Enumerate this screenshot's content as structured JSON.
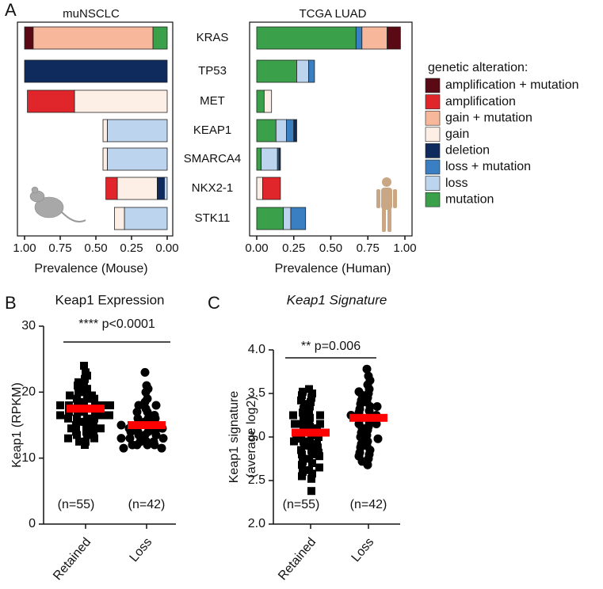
{
  "panel_labels": [
    "A",
    "B",
    "C"
  ],
  "chart_data": [
    {
      "type": "stacked-barh",
      "title": "muNSCLC",
      "xlabel": "Prevalence (Mouse)",
      "categories": [
        "KRAS",
        "TP53",
        "MET",
        "KEAP1",
        "SMARCA4",
        "NKX2-1",
        "STK11"
      ],
      "xlim": [
        1,
        0
      ],
      "xticks": [
        {
          "value": 1,
          "label": "1.00"
        },
        {
          "value": 0.75,
          "label": "0.75"
        },
        {
          "value": 0.5,
          "label": "0.50"
        },
        {
          "value": 0.25,
          "label": "0.25"
        },
        {
          "value": 0,
          "label": "0.00"
        }
      ],
      "series": [
        {
          "name": "amplification + mutation",
          "color": "#5a0a14",
          "values": [
            0.06,
            0,
            0,
            0,
            0,
            0,
            0
          ]
        },
        {
          "name": "amplification",
          "color": "#e0262b",
          "values": [
            0,
            0,
            0.33,
            0,
            0,
            0.08,
            0
          ]
        },
        {
          "name": "gain + mutation",
          "color": "#f7b79b",
          "values": [
            0.84,
            0,
            0,
            0,
            0,
            0,
            0
          ]
        },
        {
          "name": "gain",
          "color": "#fdefe5",
          "values": [
            0,
            0,
            0.65,
            0.03,
            0.03,
            0.28,
            0.07
          ]
        },
        {
          "name": "deletion",
          "color": "#0f2a5c",
          "values": [
            0,
            1,
            0,
            0,
            0,
            0.05,
            0
          ]
        },
        {
          "name": "loss + mutation",
          "color": "#3a7fc1",
          "values": [
            0,
            0,
            0,
            0,
            0,
            0,
            0
          ]
        },
        {
          "name": "loss",
          "color": "#bdd4ee",
          "values": [
            0,
            0,
            0,
            0.42,
            0.42,
            0.02,
            0.3
          ]
        },
        {
          "name": "mutation",
          "color": "#3aa04a",
          "values": [
            0.1,
            0,
            0,
            0,
            0,
            0,
            0
          ]
        }
      ]
    },
    {
      "type": "stacked-barh",
      "title": "TCGA LUAD",
      "xlabel": "Prevalence (Human)",
      "categories": [
        "KRAS",
        "TP53",
        "MET",
        "KEAP1",
        "SMARCA4",
        "NKX2-1",
        "STK11"
      ],
      "xlim": [
        0,
        1
      ],
      "xticks": [
        {
          "value": 0,
          "label": "0.00"
        },
        {
          "value": 0.25,
          "label": "0.25"
        },
        {
          "value": 0.5,
          "label": "0.50"
        },
        {
          "value": 0.75,
          "label": "0.75"
        },
        {
          "value": 1,
          "label": "1.00"
        }
      ],
      "legend": "right",
      "legend_title": "genetic alteration:",
      "series": [
        {
          "name": "amplification + mutation",
          "color": "#5a0a14",
          "values": [
            0.09,
            0,
            0,
            0,
            0,
            0,
            0
          ]
        },
        {
          "name": "amplification",
          "color": "#e0262b",
          "values": [
            0,
            0,
            0,
            0,
            0,
            0.12,
            0
          ]
        },
        {
          "name": "gain + mutation",
          "color": "#f7b79b",
          "values": [
            0.17,
            0,
            0,
            0,
            0,
            0,
            0
          ]
        },
        {
          "name": "gain",
          "color": "#fdefe5",
          "values": [
            0,
            0,
            0.05,
            0,
            0,
            0.04,
            0
          ]
        },
        {
          "name": "deletion",
          "color": "#0f2a5c",
          "values": [
            0,
            0,
            0,
            0.02,
            0.01,
            0,
            0
          ]
        },
        {
          "name": "loss + mutation",
          "color": "#3a7fc1",
          "values": [
            0.04,
            0.04,
            0,
            0.05,
            0.01,
            0,
            0.1
          ]
        },
        {
          "name": "loss",
          "color": "#bdd4ee",
          "values": [
            0,
            0.08,
            0,
            0.07,
            0.11,
            0,
            0.05
          ]
        },
        {
          "name": "mutation",
          "color": "#3aa04a",
          "values": [
            0.67,
            0.27,
            0.05,
            0.13,
            0.03,
            0,
            0.18
          ]
        }
      ]
    },
    {
      "type": "dot",
      "title": "Keap1 Expression",
      "ylabel": [
        "Keap1 (RPKM)"
      ],
      "annotation": "**** p<0.0001",
      "categories": [
        "Retained",
        "Loss"
      ],
      "ylim": [
        0,
        30
      ],
      "yticks": [
        0,
        10,
        20,
        30
      ],
      "mean_color": "#ff0000",
      "groups": [
        {
          "marker": "square",
          "n_label": "(n=55)",
          "mean": 17.5,
          "values": [
            24,
            23,
            22.5,
            22,
            21.5,
            21,
            21,
            20.5,
            20,
            20,
            19.5,
            19.5,
            19,
            19,
            19,
            18.5,
            18.5,
            18,
            18,
            18,
            18,
            17.5,
            17.5,
            17.5,
            17.5,
            17,
            17,
            17,
            17,
            16.5,
            16.5,
            16.5,
            16,
            16,
            16,
            16,
            15.5,
            15.5,
            15.5,
            15,
            15,
            15,
            14.5,
            14.5,
            14,
            14,
            14,
            13.5,
            13.5,
            13,
            13,
            12.5,
            12.5,
            12,
            18
          ]
        },
        {
          "marker": "circle",
          "n_label": "(n=42)",
          "mean": 15,
          "values": [
            23,
            21,
            20.5,
            20,
            19,
            18.5,
            18,
            18,
            17.5,
            17,
            17,
            16.5,
            16,
            16,
            16,
            15.5,
            15.5,
            15,
            15,
            15,
            14.5,
            14.5,
            14,
            14,
            14,
            13.5,
            13.5,
            13.5,
            13,
            13,
            13,
            12.5,
            12.5,
            12.5,
            12,
            12,
            12,
            12,
            11.5,
            11.5,
            15,
            14
          ]
        }
      ]
    },
    {
      "type": "dot",
      "title": "Keap1 Signature",
      "ylabel": [
        "Keap1 signature",
        "(average log2)"
      ],
      "annotation": "** p=0.006",
      "categories": [
        "Retained",
        "Loss"
      ],
      "ylim": [
        2,
        4
      ],
      "yticks": [
        {
          "value": 2,
          "label": "2.0"
        },
        2.5,
        {
          "value": 3,
          "label": "3.0"
        },
        3.5,
        {
          "value": 4,
          "label": "4.0"
        }
      ],
      "mean_color": "#ff0000",
      "groups": [
        {
          "marker": "square",
          "n_label": "(n=55)",
          "mean": 3.05,
          "values": [
            3.55,
            3.52,
            3.5,
            3.48,
            3.45,
            3.42,
            3.4,
            3.38,
            3.35,
            3.32,
            3.3,
            3.28,
            3.25,
            3.22,
            3.2,
            3.18,
            3.15,
            3.15,
            3.12,
            3.1,
            3.1,
            3.08,
            3.05,
            3.05,
            3.02,
            3.0,
            3.0,
            2.98,
            2.95,
            2.95,
            2.92,
            2.9,
            2.9,
            2.88,
            2.85,
            2.85,
            2.82,
            2.8,
            2.8,
            2.78,
            2.75,
            2.72,
            2.7,
            2.68,
            2.65,
            2.62,
            2.6,
            2.58,
            2.55,
            2.52,
            3.25,
            3.15,
            3.05,
            2.95,
            2.38
          ]
        },
        {
          "marker": "circle",
          "n_label": "(n=42)",
          "mean": 3.22,
          "values": [
            3.78,
            3.7,
            3.65,
            3.6,
            3.55,
            3.52,
            3.5,
            3.48,
            3.45,
            3.42,
            3.4,
            3.38,
            3.35,
            3.32,
            3.3,
            3.28,
            3.25,
            3.22,
            3.2,
            3.18,
            3.15,
            3.12,
            3.1,
            3.08,
            3.05,
            3.02,
            3.0,
            2.98,
            2.95,
            2.92,
            2.9,
            2.88,
            2.85,
            2.82,
            2.8,
            2.78,
            2.75,
            2.72,
            2.68,
            3.35,
            3.25,
            3.15
          ]
        }
      ]
    }
  ]
}
